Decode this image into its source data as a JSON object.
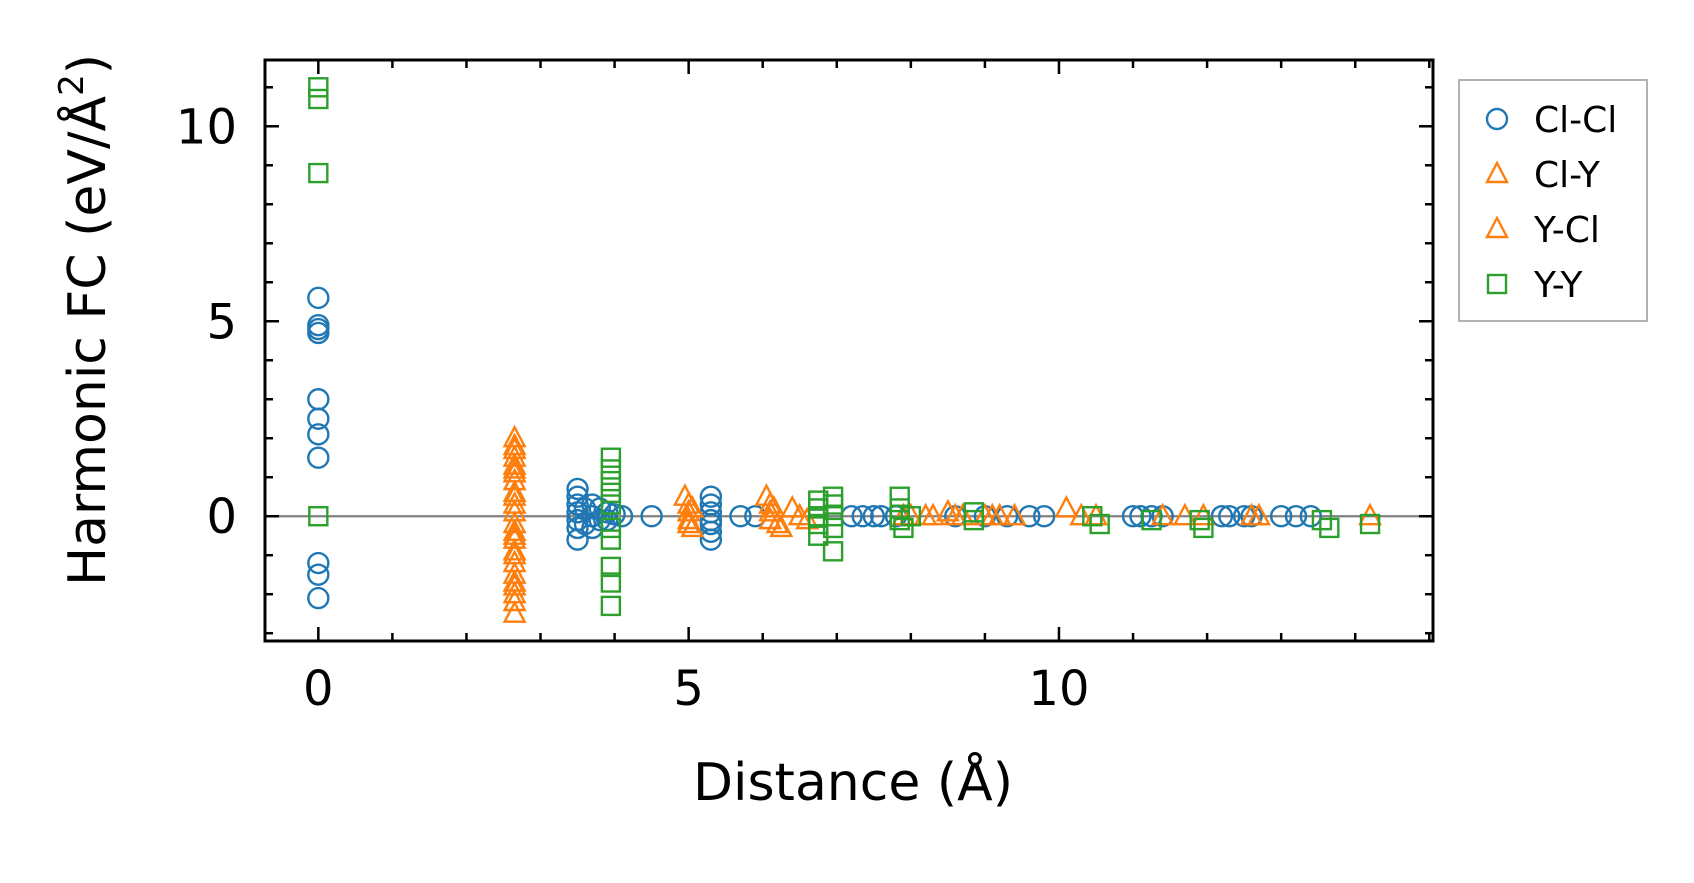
{
  "chart_data": {
    "type": "scatter",
    "title": "",
    "xlabel": "Distance (Å)",
    "ylabel": "Harmonic FC (eV/Å",
    "ylabel_sup": "2",
    "ylabel_end": ")",
    "xlim": [
      -0.72,
      15.05
    ],
    "ylim": [
      -3.2,
      11.7
    ],
    "xticks": [
      0,
      5,
      10
    ],
    "yticks": [
      0,
      5,
      10
    ],
    "x_minor_step": 1,
    "y_minor_step": 1,
    "hline_y": 0,
    "legend_position": "outside-right-top",
    "series": [
      {
        "name": "Cl-Cl",
        "marker": "circle",
        "color": "#1f77b4",
        "points": [
          [
            0,
            5.6
          ],
          [
            0,
            4.9
          ],
          [
            0,
            4.8
          ],
          [
            0,
            4.7
          ],
          [
            0,
            3.0
          ],
          [
            0,
            2.5
          ],
          [
            0,
            2.1
          ],
          [
            0,
            1.5
          ],
          [
            0,
            -1.2
          ],
          [
            0,
            -1.5
          ],
          [
            0,
            -2.1
          ],
          [
            3.5,
            0.7
          ],
          [
            3.5,
            0.5
          ],
          [
            3.5,
            0.3
          ],
          [
            3.5,
            0.1
          ],
          [
            3.5,
            -0.1
          ],
          [
            3.5,
            -0.3
          ],
          [
            3.5,
            -0.6
          ],
          [
            3.6,
            0.2
          ],
          [
            3.6,
            -0.2
          ],
          [
            3.7,
            0.3
          ],
          [
            3.7,
            0.0
          ],
          [
            3.7,
            -0.3
          ],
          [
            3.8,
            0.2
          ],
          [
            3.8,
            -0.1
          ],
          [
            3.9,
            0.1
          ],
          [
            3.9,
            -0.1
          ],
          [
            4.0,
            0.05
          ],
          [
            4.1,
            0.0
          ],
          [
            4.5,
            0.0
          ],
          [
            5.3,
            0.5
          ],
          [
            5.3,
            0.3
          ],
          [
            5.3,
            0.1
          ],
          [
            5.3,
            -0.1
          ],
          [
            5.3,
            -0.2
          ],
          [
            5.3,
            -0.4
          ],
          [
            5.3,
            -0.6
          ],
          [
            5.7,
            0.0
          ],
          [
            5.9,
            0.0
          ],
          [
            7.2,
            0.0
          ],
          [
            7.35,
            0.0
          ],
          [
            7.5,
            0.0
          ],
          [
            7.6,
            0.0
          ],
          [
            7.8,
            0.0
          ],
          [
            8.6,
            0.0
          ],
          [
            9.0,
            0.0
          ],
          [
            9.3,
            0.0
          ],
          [
            9.6,
            0.0
          ],
          [
            9.8,
            0.0
          ],
          [
            11.0,
            0.0
          ],
          [
            11.1,
            0.0
          ],
          [
            11.25,
            0.0
          ],
          [
            11.4,
            0.0
          ],
          [
            12.2,
            0.0
          ],
          [
            12.3,
            0.0
          ],
          [
            12.5,
            0.0
          ],
          [
            12.6,
            0.0
          ],
          [
            13.0,
            0.0
          ],
          [
            13.2,
            0.0
          ],
          [
            13.4,
            0.0
          ]
        ]
      },
      {
        "name": "Cl-Y",
        "marker": "triangle",
        "color": "#ff7f0e",
        "points": [
          [
            2.65,
            2.0
          ],
          [
            2.65,
            1.8
          ],
          [
            2.65,
            1.5
          ],
          [
            2.65,
            1.3
          ],
          [
            2.65,
            1.1
          ],
          [
            2.65,
            0.9
          ],
          [
            2.65,
            0.6
          ],
          [
            2.65,
            0.3
          ],
          [
            2.65,
            0.1
          ],
          [
            2.65,
            -0.2
          ],
          [
            2.65,
            -0.4
          ],
          [
            2.65,
            -0.6
          ],
          [
            2.65,
            -0.9
          ],
          [
            2.65,
            -1.2
          ],
          [
            2.65,
            -1.5
          ],
          [
            2.65,
            -1.8
          ],
          [
            2.65,
            -2.0
          ],
          [
            2.65,
            -2.2
          ],
          [
            2.65,
            -2.5
          ],
          [
            4.95,
            0.5
          ],
          [
            5.0,
            0.3
          ],
          [
            5.0,
            0.1
          ],
          [
            5.0,
            -0.1
          ],
          [
            5.0,
            -0.2
          ],
          [
            6.05,
            0.5
          ],
          [
            6.1,
            0.3
          ],
          [
            6.1,
            0.1
          ],
          [
            6.1,
            -0.1
          ],
          [
            6.2,
            -0.2
          ],
          [
            6.4,
            0.2
          ],
          [
            6.5,
            0.0
          ],
          [
            6.6,
            -0.1
          ],
          [
            7.9,
            0.0
          ],
          [
            8.0,
            0.0
          ],
          [
            8.2,
            0.0
          ],
          [
            8.5,
            0.1
          ],
          [
            8.6,
            0.0
          ],
          [
            8.7,
            0.0
          ],
          [
            9.0,
            0.0
          ],
          [
            9.2,
            0.0
          ],
          [
            9.4,
            0.0
          ],
          [
            10.1,
            0.2
          ],
          [
            10.5,
            0.0
          ],
          [
            11.7,
            0.0
          ],
          [
            12.7,
            0.0
          ],
          [
            14.2,
            0.0
          ]
        ]
      },
      {
        "name": "Y-Cl",
        "marker": "triangle",
        "color": "#ff7f0e",
        "points": [
          [
            2.65,
            1.7
          ],
          [
            2.65,
            1.2
          ],
          [
            2.65,
            0.5
          ],
          [
            2.65,
            -0.5
          ],
          [
            2.65,
            -1.0
          ],
          [
            2.65,
            -1.7
          ],
          [
            5.05,
            0.2
          ],
          [
            5.05,
            -0.3
          ],
          [
            6.15,
            0.2
          ],
          [
            6.25,
            -0.3
          ],
          [
            8.3,
            0.0
          ],
          [
            9.1,
            0.0
          ],
          [
            10.3,
            0.0
          ],
          [
            11.4,
            0.0
          ],
          [
            11.95,
            0.0
          ],
          [
            12.6,
            0.0
          ]
        ]
      },
      {
        "name": "Y-Y",
        "marker": "square",
        "color": "#2ca02c",
        "points": [
          [
            0,
            11.0
          ],
          [
            0,
            10.7
          ],
          [
            0,
            8.8
          ],
          [
            0,
            0.0
          ],
          [
            3.95,
            1.5
          ],
          [
            3.95,
            1.2
          ],
          [
            3.95,
            0.9
          ],
          [
            3.95,
            0.6
          ],
          [
            3.95,
            0.3
          ],
          [
            3.95,
            -0.3
          ],
          [
            3.95,
            -0.6
          ],
          [
            3.95,
            -1.3
          ],
          [
            3.95,
            -1.7
          ],
          [
            3.95,
            -2.3
          ],
          [
            6.75,
            0.4
          ],
          [
            6.75,
            0.2
          ],
          [
            6.75,
            0.0
          ],
          [
            6.75,
            -0.2
          ],
          [
            6.75,
            -0.5
          ],
          [
            6.95,
            0.5
          ],
          [
            6.95,
            0.3
          ],
          [
            6.95,
            0.0
          ],
          [
            6.95,
            -0.3
          ],
          [
            6.95,
            -0.9
          ],
          [
            7.85,
            0.5
          ],
          [
            7.85,
            0.2
          ],
          [
            7.85,
            -0.1
          ],
          [
            7.9,
            -0.3
          ],
          [
            8.0,
            0.0
          ],
          [
            8.85,
            0.1
          ],
          [
            8.85,
            -0.1
          ],
          [
            10.45,
            0.0
          ],
          [
            10.55,
            -0.2
          ],
          [
            11.25,
            -0.1
          ],
          [
            11.9,
            -0.1
          ],
          [
            11.95,
            -0.3
          ],
          [
            13.55,
            -0.1
          ],
          [
            13.65,
            -0.3
          ],
          [
            14.2,
            -0.2
          ]
        ]
      }
    ]
  }
}
